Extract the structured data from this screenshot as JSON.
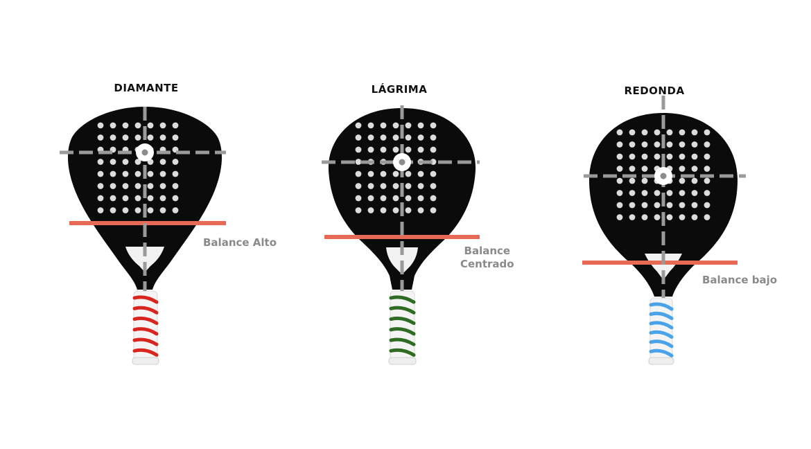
{
  "rackets": [
    {
      "id": "diamante",
      "title": "DIAMANTE",
      "balance_label": "Balance Alto",
      "balance_label_lines": [
        "Balance Alto"
      ],
      "grip_color": "#d8261e"
    },
    {
      "id": "lagrima",
      "title": "LÁGRIMA",
      "balance_label": "Balance Centrado",
      "balance_label_lines": [
        "Balance",
        "Centrado"
      ],
      "grip_color": "#2e6b23"
    },
    {
      "id": "redonda",
      "title": "REDONDA",
      "balance_label": "Balance bajo",
      "balance_label_lines": [
        "Balance bajo"
      ],
      "grip_color": "#4aa3e8"
    }
  ],
  "colors": {
    "head": "#0b0b0b",
    "holes": "#dcdcdc",
    "crosshair": "#9a9a9a",
    "balance_line": "#e86a55",
    "label": "#8a8a8a",
    "grip_base": "#f4f4f4"
  }
}
